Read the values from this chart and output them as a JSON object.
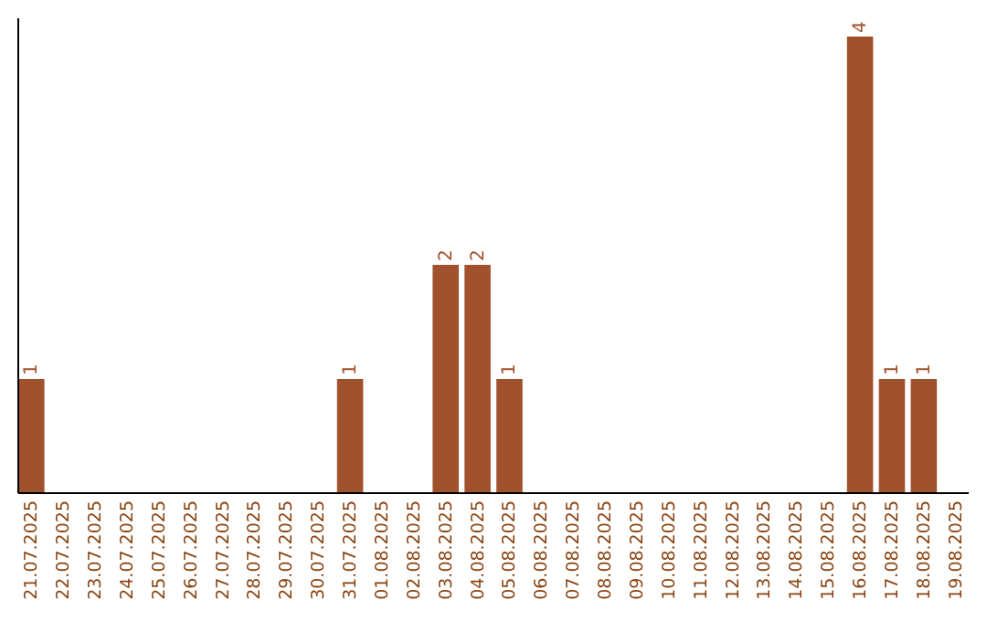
{
  "chart_data": {
    "type": "bar",
    "categories": [
      "21.07.2025",
      "22.07.2025",
      "23.07.2025",
      "24.07.2025",
      "25.07.2025",
      "26.07.2025",
      "27.07.2025",
      "28.07.2025",
      "29.07.2025",
      "30.07.2025",
      "31.07.2025",
      "01.08.2025",
      "02.08.2025",
      "03.08.2025",
      "04.08.2025",
      "05.08.2025",
      "06.08.2025",
      "07.08.2025",
      "08.08.2025",
      "09.08.2025",
      "10.08.2025",
      "11.08.2025",
      "12.08.2025",
      "13.08.2025",
      "14.08.2025",
      "15.08.2025",
      "16.08.2025",
      "17.08.2025",
      "18.08.2025",
      "19.08.2025"
    ],
    "values": [
      1,
      0,
      0,
      0,
      0,
      0,
      0,
      0,
      0,
      0,
      1,
      0,
      0,
      2,
      2,
      1,
      0,
      0,
      0,
      0,
      0,
      0,
      0,
      0,
      0,
      0,
      4,
      1,
      1,
      0
    ],
    "value_labels": [
      "1",
      null,
      null,
      null,
      null,
      null,
      null,
      null,
      null,
      null,
      "1",
      null,
      null,
      "2",
      "2",
      "1",
      null,
      null,
      null,
      null,
      null,
      null,
      null,
      null,
      null,
      null,
      "4",
      "1",
      "1",
      null
    ],
    "color": "#a0522d",
    "tick_labels": "x"
  }
}
